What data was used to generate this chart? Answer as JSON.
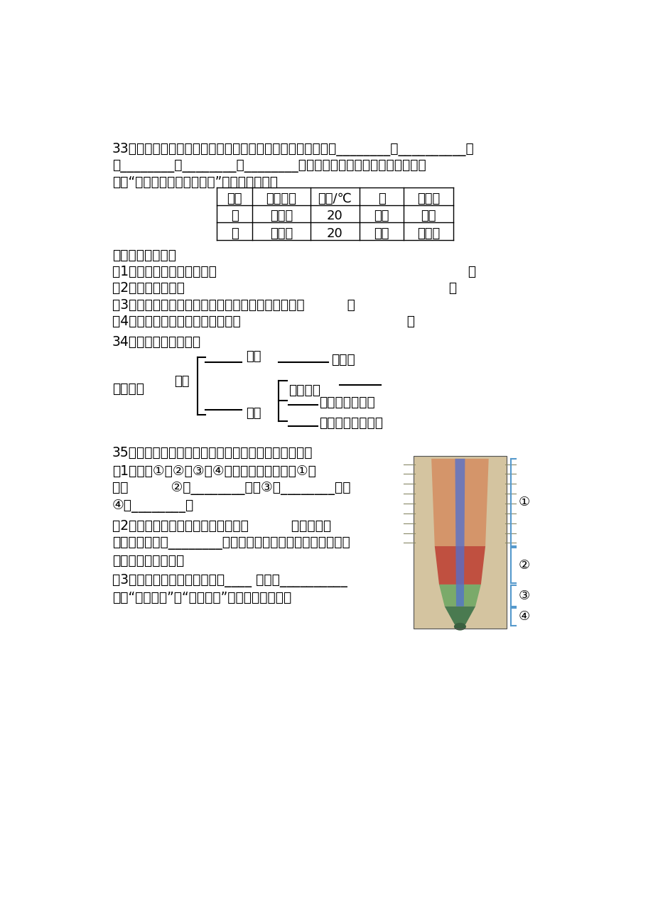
{
  "bg_color": "#ffffff",
  "q33_line1": "33、科学探究是科学家研究生命科学的常用方法，基本过程是________、__________、",
  "q33_line2": "和________、________、________、表达交流等。下表是小强同学为了",
  "q33_line3": "探究“水分影响花生种子发芽”，设计的实验。",
  "table_headers": [
    "花盆",
    "光线情况",
    "温度/℃",
    "水",
    "一周后"
  ],
  "table_row1": [
    "甲",
    "向阳处",
    "20",
    "湿润",
    "发芽"
  ],
  "table_row2": [
    "乙",
    "向阳处",
    "20",
    "干燥",
    "没发芽"
  ],
  "q33_sub1": "据表格回答问题：",
  "q33_sub2": "（1）小强同学探究的问题是                                                           ；",
  "q33_sub3": "（2）作出的假设是                                                              ；",
  "q33_sub4": "（3）小强同学设计甲、乙两组实验，目的是为了进行          。",
  "q33_sub5": "（4）你能从现象中得出科学结论是                                       。",
  "q34_title": "34、完成下列概念图：",
  "q35_title": "35、右图是植物根尖的结构模式图，请据图回答问题：",
  "q35_sub1": "（1）图中①、②、③、④代表的部位分别是：①是",
  "q35_sub2": "区，          ②是________区，③是________区，",
  "q35_sub3": "④是________。",
  "q35_sub4": "（2）根尖具有吸收功能的部位主要是          区，因为这",
  "q35_sub5": "一区域有大量的________。使根的表面积增大很多倍，有利于",
  "q35_sub6": "增强根的吸收功能。",
  "q35_sub7": "（3）根吸收的水和无机盐是由____ 管，从__________",
  "q35_sub8": "（填“从上往下”或“从下往上”）运输到茎和叶。"
}
